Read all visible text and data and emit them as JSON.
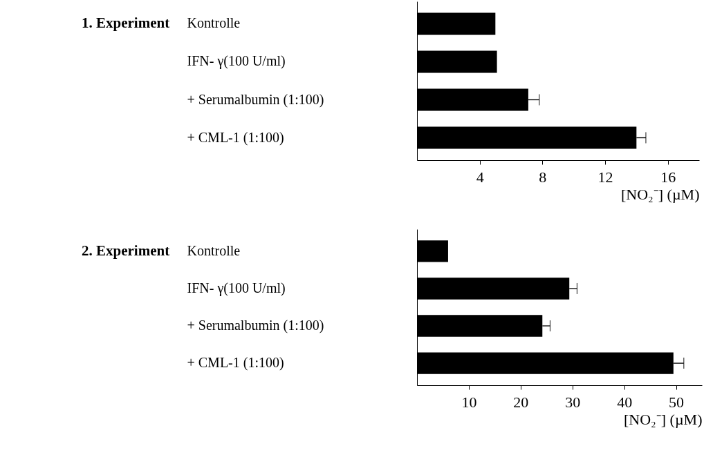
{
  "chart_data": [
    {
      "type": "bar",
      "orientation": "horizontal",
      "title": "1. Experiment",
      "xlabel": "[NO₂⁻] (µM)",
      "categories": [
        "Kontrolle",
        "IFN- γ(100 U/ml)",
        "+ Serumalbumin (1:100)",
        "+ CML-1 (1:100)"
      ],
      "values": [
        5.0,
        5.1,
        7.1,
        14.0
      ],
      "errors": [
        null,
        null,
        0.7,
        0.6
      ],
      "color": "#000000",
      "xlim": [
        0,
        18
      ],
      "xticks": [
        4,
        8,
        12,
        16
      ]
    },
    {
      "type": "bar",
      "orientation": "horizontal",
      "title": "2. Experiment",
      "xlabel": "[NO₂⁻] (µM)",
      "categories": [
        "Kontrolle",
        "IFN- γ(100 U/ml)",
        "+ Serumalbumin (1:100)",
        "+ CML-1 (1:100)"
      ],
      "values": [
        6,
        29.4,
        24.2,
        49.5
      ],
      "errors": [
        null,
        1.5,
        1.5,
        2.0
      ],
      "color": "#000000",
      "xlim": [
        0,
        55
      ],
      "xticks": [
        10,
        20,
        30,
        40,
        50
      ]
    }
  ]
}
